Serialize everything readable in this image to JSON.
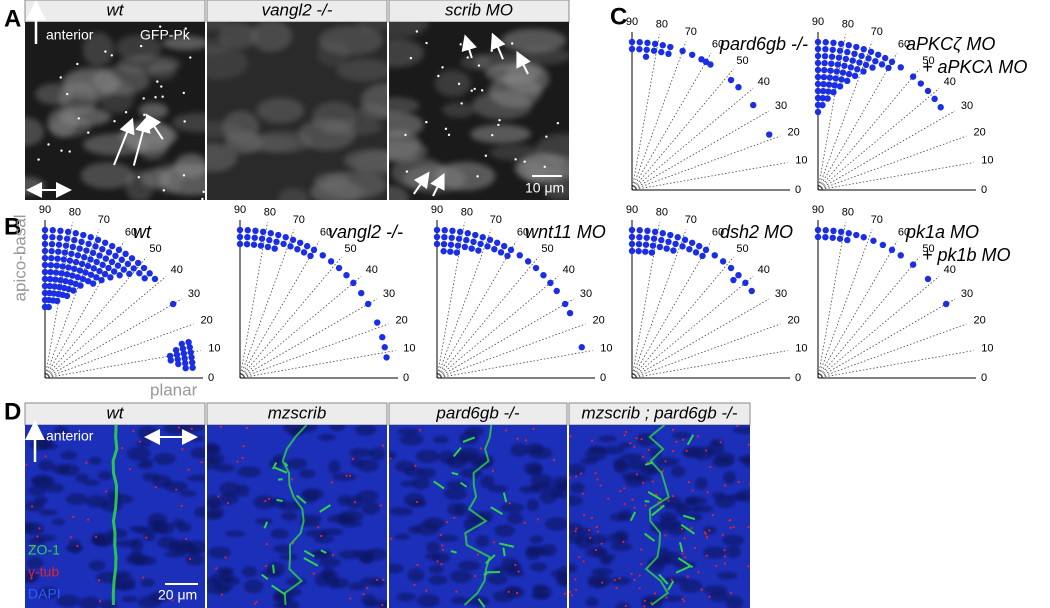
{
  "panel_labels": [
    "A",
    "B",
    "C",
    "D"
  ],
  "panel_a": {
    "headers": [
      "wt",
      "vangl2 -/-",
      "scrib MO"
    ],
    "direction": "anterior",
    "marker": "GFP-Pk",
    "scale": "10 μm"
  },
  "panel_d": {
    "headers": [
      "wt",
      "mzscrib",
      "pard6gb -/-",
      "mzscrib ; pard6gb -/-"
    ],
    "direction": "anterior",
    "channels": [
      {
        "name": "ZO-1",
        "color": "#2fd34a"
      },
      {
        "name": "γ-tub",
        "color": "#e0242a"
      },
      {
        "name": "DAPI",
        "color": "#2f5cff"
      }
    ],
    "scale": "20 μm"
  },
  "chart_data": [
    {
      "type": "polar-dot",
      "title": [
        "wt"
      ],
      "ylabel": "apico-basal",
      "xlabel": "planar",
      "color": "#1a2ee6",
      "angles": [
        90,
        87,
        84,
        81,
        78,
        75,
        72,
        69,
        66,
        63,
        60,
        57,
        54,
        51,
        48,
        45,
        42,
        30,
        14,
        12,
        10,
        8,
        6,
        4
      ],
      "counts": [
        12,
        12,
        11,
        11,
        10,
        10,
        9,
        8,
        7,
        7,
        6,
        5,
        4,
        3,
        2,
        2,
        1,
        1,
        2,
        3,
        4,
        4,
        3,
        2
      ],
      "ticks": [
        0,
        10,
        20,
        30,
        40,
        50,
        60,
        70,
        80,
        90
      ]
    },
    {
      "type": "polar-dot",
      "title": [
        "vangl2 -/-"
      ],
      "color": "#1a2ee6",
      "angles": [
        90,
        87,
        84,
        81,
        78,
        75,
        72,
        69,
        66,
        63,
        60,
        56,
        52,
        48,
        44,
        40,
        35,
        30,
        22,
        16,
        12,
        8
      ],
      "counts": [
        3,
        3,
        3,
        3,
        3,
        3,
        2,
        2,
        2,
        2,
        2,
        1,
        1,
        1,
        1,
        1,
        1,
        1,
        1,
        1,
        1,
        1
      ],
      "ticks": [
        0,
        10,
        20,
        30,
        40,
        50,
        60,
        70,
        80,
        90
      ]
    },
    {
      "type": "polar-dot",
      "title": [
        "wnt11 MO"
      ],
      "color": "#1a2ee6",
      "angles": [
        90,
        87,
        84,
        81,
        78,
        75,
        72,
        69,
        66,
        63,
        60,
        56,
        52,
        48,
        44,
        40,
        36,
        30,
        26,
        12
      ],
      "counts": [
        3,
        4,
        4,
        4,
        3,
        3,
        3,
        2,
        2,
        2,
        2,
        1,
        1,
        1,
        1,
        1,
        1,
        1,
        1,
        1
      ],
      "ticks": [
        0,
        10,
        20,
        30,
        40,
        50,
        60,
        70,
        80,
        90
      ]
    },
    {
      "type": "polar-dot",
      "title": [
        "pard6gb -/-"
      ],
      "color": "#1a2ee6",
      "angles": [
        90,
        87,
        84,
        81,
        78,
        75,
        70,
        66,
        62,
        60,
        58,
        48,
        44,
        35,
        22
      ],
      "counts": [
        2,
        2,
        3,
        2,
        2,
        2,
        1,
        1,
        1,
        1,
        1,
        1,
        1,
        1,
        1
      ],
      "ticks": [
        0,
        10,
        20,
        30,
        40,
        50,
        60,
        70,
        80,
        90
      ]
    },
    {
      "type": "polar-dot",
      "title": [
        "aPKCζ MO",
        "+ aPKCλ MO"
      ],
      "color": "#1a2ee6",
      "angles": [
        90,
        87,
        84,
        81,
        78,
        75,
        72,
        69,
        66,
        63,
        60,
        56,
        50,
        46,
        42,
        38,
        34
      ],
      "counts": [
        11,
        10,
        9,
        8,
        7,
        6,
        5,
        4,
        3,
        2,
        2,
        1,
        1,
        1,
        1,
        1,
        1
      ],
      "ticks": [
        0,
        10,
        20,
        30,
        40,
        50,
        60,
        70,
        80,
        90
      ]
    },
    {
      "type": "polar-dot",
      "title": [
        "dsh2 MO"
      ],
      "color": "#1a2ee6",
      "angles": [
        90,
        87,
        84,
        81,
        78,
        75,
        72,
        69,
        66,
        63,
        60,
        56,
        52,
        48,
        44,
        40,
        36
      ],
      "counts": [
        4,
        4,
        4,
        4,
        3,
        3,
        3,
        2,
        2,
        2,
        2,
        1,
        1,
        1,
        2,
        1,
        1
      ],
      "ticks": [
        0,
        10,
        20,
        30,
        40,
        50,
        60,
        70,
        80,
        90
      ]
    },
    {
      "type": "polar-dot",
      "title": [
        "pk1a MO",
        "+ pk1b MO"
      ],
      "color": "#1a2ee6",
      "angles": [
        90,
        87,
        84,
        81,
        78,
        75,
        72,
        68,
        64,
        60,
        56,
        50,
        42,
        30
      ],
      "counts": [
        2,
        2,
        2,
        2,
        2,
        1,
        1,
        1,
        1,
        1,
        1,
        1,
        1,
        1
      ],
      "ticks": [
        0,
        10,
        20,
        30,
        40,
        50,
        60,
        70,
        80,
        90
      ]
    }
  ]
}
